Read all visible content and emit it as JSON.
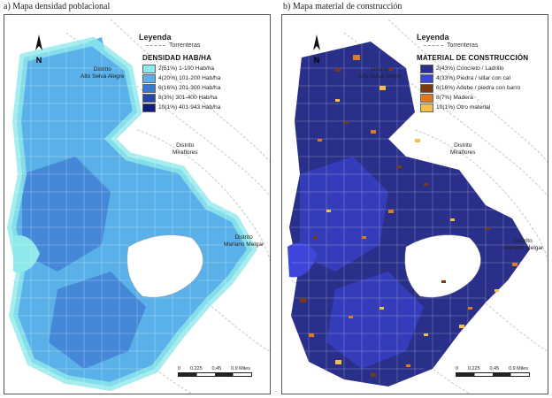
{
  "captions": {
    "left": "a) Mapa densidad poblacional",
    "right": "b) Mapa material de construcción"
  },
  "north_label": "N",
  "legend": {
    "title": "Leyenda",
    "torrenteras": "Torrenteras"
  },
  "density": {
    "header": "DENSIDAD HAB/HA",
    "items": [
      {
        "label": "2(51%) 1-100 Hab/ha",
        "color": "#8fe8ea"
      },
      {
        "label": "4(20%) 101-200 Hab/ha",
        "color": "#5ab0e8"
      },
      {
        "label": "6(16%) 201-300 Hab/ha",
        "color": "#3a78d0"
      },
      {
        "label": "8(3%) 301-400 Hab/ha",
        "color": "#2545a8"
      },
      {
        "label": "10(1%) 401-943 Hab/ha",
        "color": "#0f1f78"
      }
    ]
  },
  "material": {
    "header": "MATERIAL DE CONSTRUCCIÓN",
    "items": [
      {
        "label": "2(43%) Concreto / Ladrillo",
        "color": "#2a2f8a"
      },
      {
        "label": "4(33%) Piedra / sillar con cal",
        "color": "#3d46d8"
      },
      {
        "label": "6(16%) Adobe / piedra con barro",
        "color": "#7a3a12"
      },
      {
        "label": "8(7%) Madera",
        "color": "#e07a1e"
      },
      {
        "label": "10(1%) Otro material",
        "color": "#f4be4a"
      }
    ]
  },
  "districts": {
    "alto": "Distrito\nAlto Selva Alegre",
    "miraflores": "Distrito\nMiraflores",
    "melgar": "Distrito\nMariano Melgar"
  },
  "scale": {
    "ticks": [
      "0",
      "0.225",
      "0.45",
      "0.9 Miles"
    ]
  }
}
